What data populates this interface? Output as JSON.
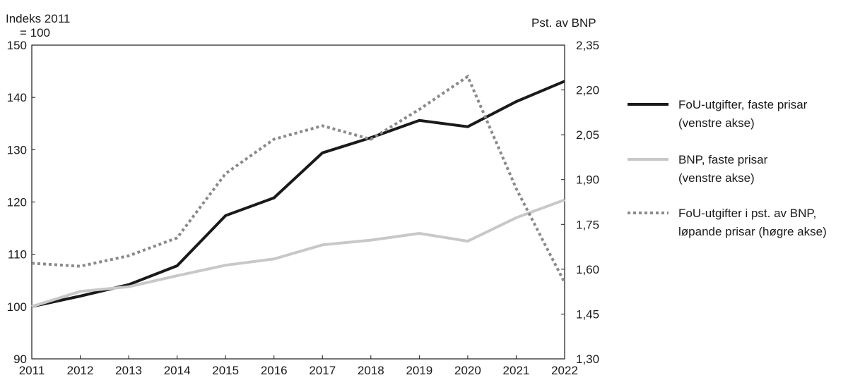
{
  "chart_data": {
    "type": "line",
    "left_axis_label_line1": "Indeks 2011",
    "left_axis_label_line2": "= 100",
    "right_axis_label": "Pst. av BNP",
    "x": [
      "2011",
      "2012",
      "2013",
      "2014",
      "2015",
      "2016",
      "2017",
      "2018",
      "2019",
      "2020",
      "2021",
      "2022"
    ],
    "left_ylim": [
      90,
      150
    ],
    "left_ticks": [
      "90",
      "100",
      "110",
      "120",
      "130",
      "140",
      "150"
    ],
    "right_ylim": [
      1.3,
      2.35
    ],
    "right_ticks": [
      "1,30",
      "1,45",
      "1,60",
      "1,75",
      "1,90",
      "2,05",
      "2,20",
      "2,35"
    ],
    "grid": false,
    "legend_position": "right",
    "series": [
      {
        "name_line1": "FoU-utgifter, faste prisar",
        "name_line2": "(venstre akse)",
        "axis": "left",
        "color": "#1a1a1a",
        "style": "solid",
        "values": [
          100,
          102,
          104.2,
          107.8,
          117.4,
          120.8,
          129.4,
          132.3,
          135.6,
          134.4,
          139.2,
          143.1
        ]
      },
      {
        "name_line1": "BNP, faste prisar",
        "name_line2": "(venstre akse)",
        "axis": "left",
        "color": "#c8c8c8",
        "style": "solid",
        "values": [
          100,
          102.9,
          103.8,
          105.9,
          107.9,
          109.1,
          111.8,
          112.7,
          114.0,
          112.5,
          117.0,
          120.4
        ]
      },
      {
        "name_line1": "FoU-utgifter i pst. av BNP,",
        "name_line2": "løpande prisar (høgre akse)",
        "axis": "right",
        "color": "#8a8a8a",
        "style": "dotted",
        "values": [
          1.62,
          1.61,
          1.645,
          1.705,
          1.92,
          2.035,
          2.08,
          2.035,
          2.135,
          2.245,
          1.87,
          1.555
        ]
      }
    ]
  }
}
